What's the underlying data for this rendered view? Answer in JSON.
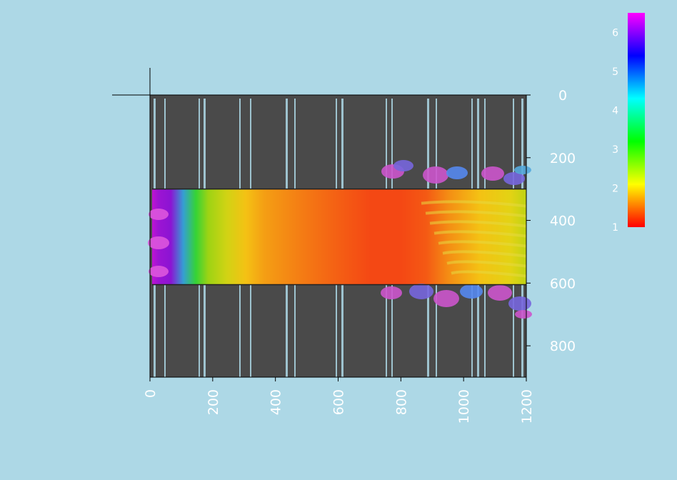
{
  "chart_data": {
    "type": "heatmap",
    "title": "",
    "xlabel": "",
    "ylabel": "",
    "x_ticks": [
      "0",
      "200",
      "400",
      "600",
      "800",
      "1000",
      "1200"
    ],
    "y_ticks": [
      "0",
      "200",
      "400",
      "600",
      "800"
    ],
    "xlim": [
      0,
      1200
    ],
    "ylim": [
      0,
      900
    ],
    "y_axis_direction": "down",
    "colorbar": {
      "ticks": [
        "1",
        "2",
        "3",
        "4",
        "5",
        "6"
      ],
      "range": [
        1,
        6.5
      ],
      "colormap": [
        "#ff0000",
        "#ffff00",
        "#00ff00",
        "#00ffff",
        "#0000ff",
        "#ff00ff"
      ]
    },
    "band": {
      "y_top": 300,
      "y_bottom": 605
    },
    "profile_x": [
      0,
      20,
      60,
      100,
      140,
      180,
      240,
      300,
      360,
      420,
      480,
      550,
      620,
      700,
      800,
      880,
      950,
      1050,
      1150,
      1200
    ],
    "profile_value": [
      6.2,
      6.0,
      5.9,
      4.6,
      3.4,
      2.6,
      2.3,
      2.0,
      1.8,
      1.7,
      1.6,
      1.5,
      1.4,
      1.3,
      1.3,
      1.4,
      1.7,
      2.0,
      2.2,
      2.4
    ],
    "background_color": "#4a4a4a"
  }
}
